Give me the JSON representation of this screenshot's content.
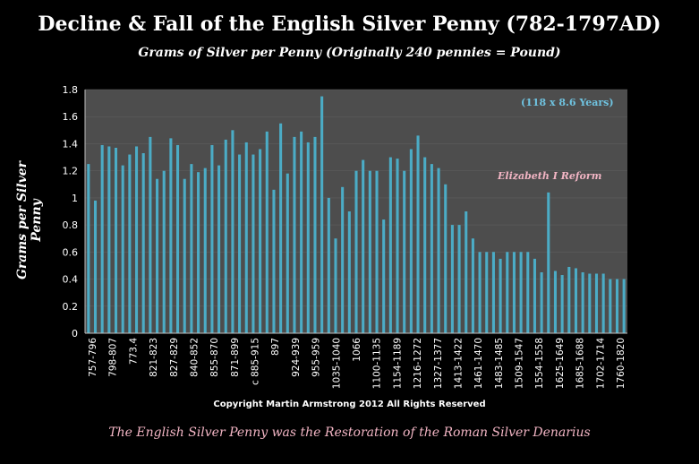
{
  "colors": {
    "bar": "#4bacc6",
    "plot_bg": "#4d4d4d",
    "annotation": "#f2b5c4",
    "note": "#6fc3e0"
  },
  "chart_data": {
    "type": "bar",
    "title": "Decline & Fall of the English Silver Penny (782-1797AD)",
    "subtitle": "Grams of Silver per Penny (Originally 240 pennies = Pound)",
    "ylabel": "Grams per Silver Penny",
    "xlabel": "",
    "ylim": [
      0,
      1.8
    ],
    "yticks": [
      "0",
      "0.2",
      "0.4",
      "0.6",
      "0.8",
      "1",
      "1.2",
      "1.4",
      "1.6",
      "1.8"
    ],
    "note": "(118 x 8.6 Years)",
    "annotation": "Elizabeth I Reform",
    "copyright": "Copyright Martin Armstrong 2012 All Rights Reserved",
    "footer": "The English Silver Penny was the Restoration of the Roman Silver Denarius",
    "tick_labels": [
      "757-796",
      "798-807",
      "773.4",
      "821-823",
      "827-829",
      "840-852",
      "855-870",
      "871-899",
      "c 885-915",
      "897",
      "924-939",
      "955-959",
      "1035-1040",
      "1066",
      "1100-1135",
      "1154-1189",
      "1216-1272",
      "1327-1377",
      "1413-1422",
      "1461-1470",
      "1483-1485",
      "1509-1547",
      "1554-1558",
      "1625-1649",
      "1685-1688",
      "1702-1714",
      "1760-1820"
    ],
    "values": [
      1.25,
      0.98,
      1.39,
      1.38,
      1.37,
      1.24,
      1.32,
      1.38,
      1.33,
      1.45,
      1.14,
      1.2,
      1.44,
      1.39,
      1.14,
      1.25,
      1.19,
      1.22,
      1.39,
      1.24,
      1.43,
      1.5,
      1.32,
      1.41,
      1.32,
      1.36,
      1.49,
      1.06,
      1.55,
      1.18,
      1.45,
      1.49,
      1.41,
      1.45,
      1.75,
      1.0,
      0.7,
      1.08,
      0.9,
      1.2,
      1.28,
      1.2,
      1.2,
      0.84,
      1.3,
      1.29,
      1.2,
      1.36,
      1.46,
      1.3,
      1.25,
      1.22,
      1.1,
      0.8,
      0.8,
      0.9,
      0.7,
      0.6,
      0.6,
      0.6,
      0.55,
      0.6,
      0.6,
      0.6,
      0.6,
      0.55,
      0.45,
      1.04,
      0.46,
      0.43,
      0.49,
      0.48,
      0.45,
      0.44,
      0.44,
      0.44,
      0.4,
      0.4,
      0.4
    ]
  }
}
